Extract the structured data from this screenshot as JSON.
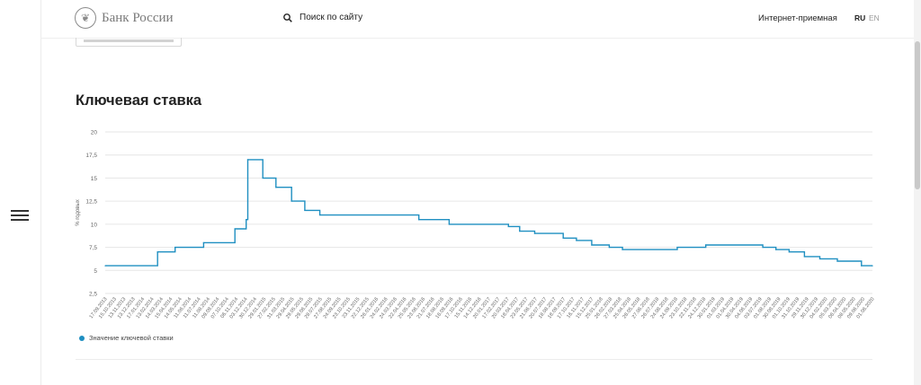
{
  "header": {
    "logo_text": "Банк России",
    "search_label": "Поиск по сайту",
    "reception_label": "Интернет-приемная",
    "lang_ru": "RU",
    "lang_en": "EN",
    "icons": [
      "menu-icon",
      "search-icon",
      "emblem-icon"
    ]
  },
  "main": {
    "title": "Ключевая ставка"
  },
  "chart_data": {
    "type": "line",
    "step": true,
    "ylabel": "% годовых",
    "ylim": [
      2.5,
      20
    ],
    "yticks": [
      "2,5",
      "5",
      "7,5",
      "10",
      "12,5",
      "15",
      "17,5",
      "20"
    ],
    "grid": true,
    "legend": "bottom-left",
    "color": "#1f8fc1",
    "x_ticks": [
      "17.09.2013",
      "15.10.2013",
      "13.11.2013",
      "13.12.2013",
      "17.01.2014",
      "13.02.2014",
      "14.03.2014",
      "15.04.2014",
      "14.05.2014",
      "11.06.2014",
      "11.07.2014",
      "11.08.2014",
      "09.09.2014",
      "07.10.2014",
      "06.11.2014",
      "03.12.2014",
      "30.12.2014",
      "29.01.2015",
      "27.02.2015",
      "31.03.2015",
      "29.04.2015",
      "29.05.2015",
      "29.06.2015",
      "28.07.2015",
      "27.08.2015",
      "24.09.2015",
      "23.10.2015",
      "23.11.2015",
      "22.12.2015",
      "26.01.2016",
      "24.02.2016",
      "24.03.2016",
      "22.04.2016",
      "25.05.2016",
      "23.06.2016",
      "21.07.2016",
      "18.08.2016",
      "16.09.2016",
      "17.10.2016",
      "15.11.2016",
      "14.12.2016",
      "20.01.2017",
      "17.02.2017",
      "20.03.2017",
      "18.04.2017",
      "23.05.2017",
      "21.06.2017",
      "20.07.2017",
      "18.08.2017",
      "18.09.2017",
      "17.10.2017",
      "16.11.2017",
      "15.12.2017",
      "25.01.2018",
      "26.02.2018",
      "27.03.2018",
      "25.04.2018",
      "28.05.2018",
      "27.06.2018",
      "26.07.2018",
      "24.08.2018",
      "24.09.2018",
      "23.10.2018",
      "22.11.2018",
      "24.12.2018",
      "30.01.2019",
      "01.03.2019",
      "01.04.2019",
      "30.04.2019",
      "04.06.2019",
      "03.07.2019",
      "01.08.2019",
      "30.08.2019",
      "01.10.2019",
      "31.10.2019",
      "29.11.2019",
      "30.12.2019",
      "04.02.2020",
      "05.03.2020",
      "06.04.2020",
      "08.05.2020",
      "09.06.2020",
      "01.06.2020"
    ],
    "series": [
      {
        "name": "Значение ключевой ставки",
        "points": [
          [
            "17.09.2013",
            5.5
          ],
          [
            "03.03.2014",
            7.0
          ],
          [
            "28.04.2014",
            7.5
          ],
          [
            "28.07.2014",
            8.0
          ],
          [
            "05.11.2014",
            9.5
          ],
          [
            "11.12.2014",
            10.5
          ],
          [
            "16.12.2014",
            17.0
          ],
          [
            "02.02.2015",
            15.0
          ],
          [
            "16.03.2015",
            14.0
          ],
          [
            "05.05.2015",
            12.5
          ],
          [
            "16.06.2015",
            11.5
          ],
          [
            "03.08.2015",
            11.0
          ],
          [
            "14.06.2016",
            10.5
          ],
          [
            "19.09.2016",
            10.0
          ],
          [
            "27.03.2017",
            9.75
          ],
          [
            "02.05.2017",
            9.25
          ],
          [
            "19.06.2017",
            9.0
          ],
          [
            "18.09.2017",
            8.5
          ],
          [
            "30.10.2017",
            8.25
          ],
          [
            "18.12.2017",
            7.75
          ],
          [
            "12.02.2018",
            7.5
          ],
          [
            "26.03.2018",
            7.25
          ],
          [
            "17.09.2018",
            7.5
          ],
          [
            "17.12.2018",
            7.75
          ],
          [
            "17.06.2019",
            7.5
          ],
          [
            "29.07.2019",
            7.25
          ],
          [
            "09.09.2019",
            7.0
          ],
          [
            "28.10.2019",
            6.5
          ],
          [
            "16.12.2019",
            6.25
          ],
          [
            "10.02.2020",
            6.0
          ],
          [
            "27.04.2020",
            5.5
          ],
          [
            "01.06.2020",
            5.5
          ]
        ]
      }
    ]
  }
}
